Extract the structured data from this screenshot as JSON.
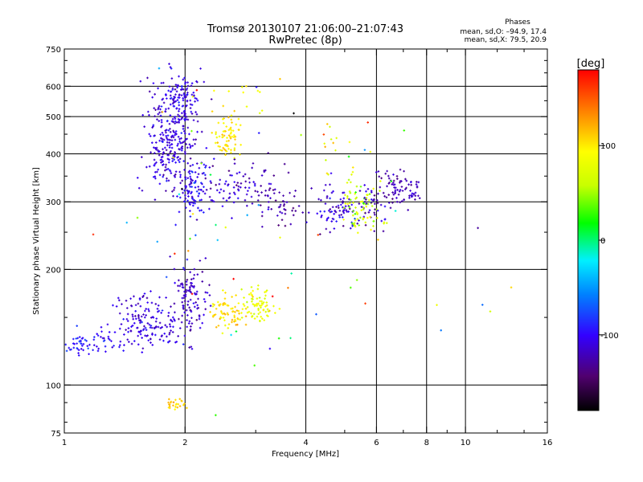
{
  "chart_data": {
    "type": "scatter",
    "title": "Tromsø 20130107 21:06:00–21:07:43",
    "subtitle": "RwPretec (8p)",
    "xlabel": "Frequency [MHz]",
    "ylabel": "Stationary phase Virtual Height [km]",
    "x_scale": "log",
    "y_scale": "log",
    "xlim": [
      1,
      16
    ],
    "ylim": [
      75,
      750
    ],
    "x_ticks": [
      1,
      2,
      4,
      6,
      8,
      10,
      16
    ],
    "y_ticks": [
      75,
      100,
      200,
      300,
      400,
      500,
      600,
      750
    ],
    "x_grid": [
      2,
      4,
      6,
      8,
      10
    ],
    "y_grid": [
      100,
      200,
      300,
      400,
      500,
      600
    ],
    "grid": true,
    "colorbar": {
      "label": "[deg]",
      "range": [
        -180,
        180
      ],
      "ticks": [
        100,
        0,
        -100
      ]
    },
    "stats": {
      "title": "Phases",
      "line1": "mean, sd,O: –94.9, 17.4",
      "line2": "mean, sd,X:  79.5, 20.9"
    },
    "clusters": [
      {
        "xc": 1.85,
        "xs": 0.08,
        "yc": 420,
        "ys": 0.15,
        "n": 260,
        "ph": -110,
        "phs": 10
      },
      {
        "xc": 1.95,
        "xs": 0.06,
        "yc": 560,
        "ys": 0.07,
        "n": 120,
        "ph": -105,
        "phs": 10
      },
      {
        "xc": 2.1,
        "xs": 0.04,
        "yc": 320,
        "ys": 0.08,
        "n": 90,
        "ph": -100,
        "phs": 12
      },
      {
        "xc": 1.6,
        "xs": 0.1,
        "yc": 145,
        "ys": 0.08,
        "n": 160,
        "ph": -110,
        "phs": 10
      },
      {
        "xc": 2.05,
        "xs": 0.05,
        "yc": 170,
        "ys": 0.12,
        "n": 110,
        "ph": -115,
        "phs": 10
      },
      {
        "xc": 1.1,
        "xs": 0.05,
        "yc": 128,
        "ys": 0.04,
        "n": 40,
        "ph": -90,
        "phs": 10
      },
      {
        "xc": 1.25,
        "xs": 0.06,
        "yc": 132,
        "ys": 0.04,
        "n": 25,
        "ph": -100,
        "phs": 10
      },
      {
        "xc": 2.55,
        "xs": 0.04,
        "yc": 440,
        "ys": 0.07,
        "n": 70,
        "ph": 100,
        "phs": 10
      },
      {
        "xc": 2.55,
        "xs": 0.05,
        "yc": 155,
        "ys": 0.05,
        "n": 70,
        "ph": 105,
        "phs": 10
      },
      {
        "xc": 3.05,
        "xs": 0.05,
        "yc": 162,
        "ys": 0.05,
        "n": 75,
        "ph": 80,
        "phs": 12
      },
      {
        "xc": 2.8,
        "xs": 0.12,
        "yc": 330,
        "ys": 0.08,
        "n": 90,
        "ph": -115,
        "phs": 12
      },
      {
        "xc": 3.4,
        "xs": 0.06,
        "yc": 290,
        "ys": 0.06,
        "n": 40,
        "ph": -125,
        "phs": 8
      },
      {
        "xc": 4.9,
        "xs": 0.08,
        "yc": 285,
        "ys": 0.07,
        "n": 80,
        "ph": -110,
        "phs": 12
      },
      {
        "xc": 5.4,
        "xs": 0.06,
        "yc": 300,
        "ys": 0.07,
        "n": 60,
        "ph": 60,
        "phs": 20
      },
      {
        "xc": 5.9,
        "xs": 0.04,
        "yc": 290,
        "ys": 0.07,
        "n": 40,
        "ph": -115,
        "phs": 10
      },
      {
        "xc": 6.7,
        "xs": 0.05,
        "yc": 330,
        "ys": 0.05,
        "n": 60,
        "ph": -125,
        "phs": 8
      },
      {
        "xc": 7.5,
        "xs": 0.02,
        "yc": 320,
        "ys": 0.04,
        "n": 20,
        "ph": -115,
        "phs": 8
      },
      {
        "xc": 1.9,
        "xs": 0.03,
        "yc": 89,
        "ys": 0.015,
        "n": 25,
        "ph": 110,
        "phs": 8
      },
      {
        "xc": 2.9,
        "xs": 0.08,
        "yc": 560,
        "ys": 0.08,
        "n": 15,
        "ph": 95,
        "phs": 10
      },
      {
        "xc": 4.8,
        "xs": 0.1,
        "yc": 400,
        "ys": 0.15,
        "n": 15,
        "ph": 90,
        "phs": 25
      },
      {
        "xc": 5.6,
        "xs": 0.05,
        "yc": 265,
        "ys": 0.03,
        "n": 20,
        "ph": 75,
        "phs": 15
      },
      {
        "xc": 3.0,
        "xs": 0.6,
        "yc": 250,
        "ys": 0.5,
        "n": 70,
        "ph": 0,
        "phs": 120
      }
    ]
  }
}
